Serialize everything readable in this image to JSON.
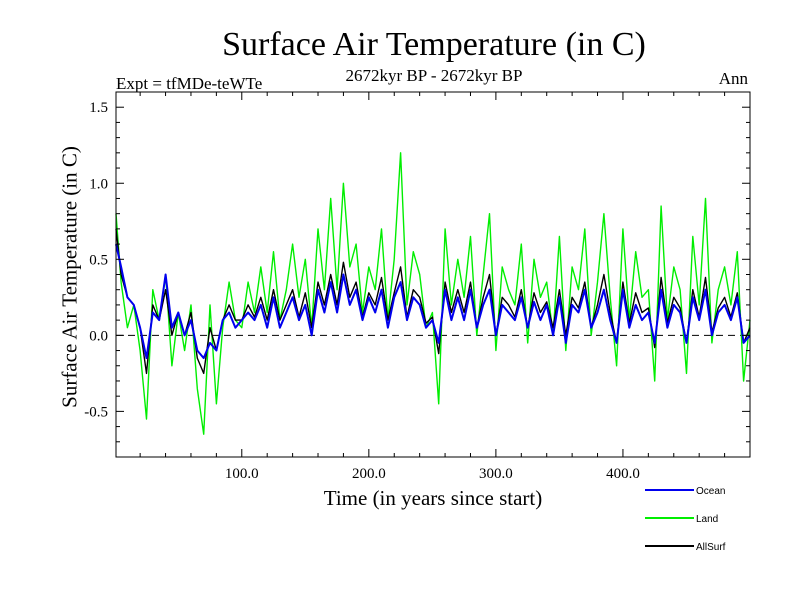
{
  "chart_data": {
    "type": "line",
    "title": "Surface Air Temperature (in C)",
    "subtitle": "2672kyr BP - 2672kyr BP",
    "experiment": "Expt = tfMDe-teWTe",
    "season": "Ann",
    "xlabel": "Time (in years since start)",
    "ylabel": "Surface Air Temperature (in C)",
    "xlim": [
      1,
      500
    ],
    "ylim": [
      -0.8,
      1.6
    ],
    "xticks": [
      100,
      200,
      300,
      400
    ],
    "xtick_labels": [
      "100.0",
      "200.0",
      "300.0",
      "400.0"
    ],
    "yticks": [
      -0.5,
      0.0,
      0.5,
      1.0,
      1.5
    ],
    "ytick_labels": [
      "-0.5",
      "0.0",
      "0.5",
      "1.0",
      "1.5"
    ],
    "zero_line": 0.0,
    "series": [
      {
        "name": "Land",
        "color": "#00ee00",
        "x": [
          1,
          5,
          10,
          15,
          20,
          25,
          30,
          35,
          40,
          45,
          50,
          55,
          60,
          65,
          70,
          75,
          80,
          85,
          90,
          95,
          100,
          105,
          110,
          115,
          120,
          125,
          130,
          135,
          140,
          145,
          150,
          155,
          160,
          165,
          170,
          175,
          180,
          185,
          190,
          195,
          200,
          205,
          210,
          215,
          220,
          225,
          230,
          235,
          240,
          245,
          250,
          255,
          260,
          265,
          270,
          275,
          280,
          285,
          290,
          295,
          300,
          305,
          310,
          315,
          320,
          325,
          330,
          335,
          340,
          345,
          350,
          355,
          360,
          365,
          370,
          375,
          380,
          385,
          390,
          395,
          400,
          405,
          410,
          415,
          420,
          425,
          430,
          435,
          440,
          445,
          450,
          455,
          460,
          465,
          470,
          475,
          480,
          485,
          490,
          495,
          500
        ],
        "values": [
          0.8,
          0.35,
          0.05,
          0.2,
          -0.1,
          -0.55,
          0.3,
          0.1,
          0.4,
          -0.2,
          0.15,
          -0.1,
          0.2,
          -0.35,
          -0.65,
          0.2,
          -0.45,
          0.05,
          0.35,
          0.1,
          0.05,
          0.35,
          0.15,
          0.45,
          0.15,
          0.55,
          0.1,
          0.3,
          0.6,
          0.25,
          0.5,
          0.05,
          0.7,
          0.3,
          0.9,
          0.3,
          1.0,
          0.45,
          0.6,
          0.15,
          0.45,
          0.3,
          0.7,
          0.1,
          0.5,
          1.2,
          0.2,
          0.55,
          0.4,
          0.05,
          0.15,
          -0.45,
          0.7,
          0.2,
          0.5,
          0.25,
          0.65,
          0.0,
          0.4,
          0.8,
          -0.1,
          0.45,
          0.3,
          0.2,
          0.6,
          -0.05,
          0.5,
          0.25,
          0.35,
          0.0,
          0.65,
          -0.1,
          0.45,
          0.3,
          0.7,
          0.0,
          0.35,
          0.8,
          0.25,
          -0.2,
          0.7,
          0.1,
          0.55,
          0.25,
          0.3,
          -0.3,
          0.85,
          0.1,
          0.45,
          0.3,
          -0.25,
          0.65,
          0.2,
          0.9,
          -0.05,
          0.3,
          0.45,
          0.2,
          0.55,
          -0.3,
          0.1
        ]
      },
      {
        "name": "AllSurf",
        "color": "#000000",
        "x": [
          1,
          5,
          10,
          15,
          20,
          25,
          30,
          35,
          40,
          45,
          50,
          55,
          60,
          65,
          70,
          75,
          80,
          85,
          90,
          95,
          100,
          105,
          110,
          115,
          120,
          125,
          130,
          135,
          140,
          145,
          150,
          155,
          160,
          165,
          170,
          175,
          180,
          185,
          190,
          195,
          200,
          205,
          210,
          215,
          220,
          225,
          230,
          235,
          240,
          245,
          250,
          255,
          260,
          265,
          270,
          275,
          280,
          285,
          290,
          295,
          300,
          305,
          310,
          315,
          320,
          325,
          330,
          335,
          340,
          345,
          350,
          355,
          360,
          365,
          370,
          375,
          380,
          385,
          390,
          395,
          400,
          405,
          410,
          415,
          420,
          425,
          430,
          435,
          440,
          445,
          450,
          455,
          460,
          465,
          470,
          475,
          480,
          485,
          490,
          495,
          500
        ],
        "values": [
          0.7,
          0.4,
          0.25,
          0.2,
          0.05,
          -0.25,
          0.2,
          0.1,
          0.3,
          0.0,
          0.15,
          0.0,
          0.15,
          -0.15,
          -0.25,
          0.05,
          -0.1,
          0.1,
          0.2,
          0.1,
          0.1,
          0.2,
          0.12,
          0.25,
          0.1,
          0.3,
          0.1,
          0.2,
          0.3,
          0.12,
          0.28,
          0.05,
          0.35,
          0.2,
          0.4,
          0.2,
          0.48,
          0.25,
          0.35,
          0.12,
          0.28,
          0.2,
          0.38,
          0.1,
          0.28,
          0.45,
          0.12,
          0.3,
          0.25,
          0.08,
          0.12,
          -0.12,
          0.35,
          0.15,
          0.3,
          0.15,
          0.35,
          0.05,
          0.25,
          0.4,
          0.0,
          0.25,
          0.2,
          0.12,
          0.3,
          0.05,
          0.28,
          0.15,
          0.22,
          0.05,
          0.3,
          0.0,
          0.25,
          0.18,
          0.35,
          0.05,
          0.2,
          0.4,
          0.15,
          -0.05,
          0.35,
          0.08,
          0.28,
          0.15,
          0.18,
          -0.08,
          0.38,
          0.08,
          0.25,
          0.18,
          -0.05,
          0.3,
          0.12,
          0.38,
          0.02,
          0.18,
          0.25,
          0.12,
          0.28,
          -0.05,
          0.05
        ]
      },
      {
        "name": "Ocean",
        "color": "#0000ee",
        "x": [
          1,
          5,
          10,
          15,
          20,
          25,
          30,
          35,
          40,
          45,
          50,
          55,
          60,
          65,
          70,
          75,
          80,
          85,
          90,
          95,
          100,
          105,
          110,
          115,
          120,
          125,
          130,
          135,
          140,
          145,
          150,
          155,
          160,
          165,
          170,
          175,
          180,
          185,
          190,
          195,
          200,
          205,
          210,
          215,
          220,
          225,
          230,
          235,
          240,
          245,
          250,
          255,
          260,
          265,
          270,
          275,
          280,
          285,
          290,
          295,
          300,
          305,
          310,
          315,
          320,
          325,
          330,
          335,
          340,
          345,
          350,
          355,
          360,
          365,
          370,
          375,
          380,
          385,
          390,
          395,
          400,
          405,
          410,
          415,
          420,
          425,
          430,
          435,
          440,
          445,
          450,
          455,
          460,
          465,
          470,
          475,
          480,
          485,
          490,
          495,
          500
        ],
        "values": [
          0.6,
          0.45,
          0.25,
          0.2,
          0.05,
          -0.15,
          0.15,
          0.1,
          0.4,
          0.05,
          0.15,
          0.0,
          0.1,
          -0.1,
          -0.15,
          -0.05,
          -0.1,
          0.1,
          0.15,
          0.05,
          0.1,
          0.15,
          0.1,
          0.2,
          0.05,
          0.25,
          0.05,
          0.15,
          0.25,
          0.1,
          0.2,
          0.0,
          0.3,
          0.15,
          0.35,
          0.15,
          0.4,
          0.2,
          0.3,
          0.1,
          0.25,
          0.15,
          0.3,
          0.05,
          0.25,
          0.35,
          0.1,
          0.25,
          0.2,
          0.05,
          0.1,
          -0.05,
          0.3,
          0.1,
          0.25,
          0.1,
          0.3,
          0.05,
          0.2,
          0.3,
          0.0,
          0.2,
          0.15,
          0.1,
          0.25,
          0.05,
          0.22,
          0.1,
          0.2,
          0.0,
          0.25,
          -0.05,
          0.2,
          0.15,
          0.3,
          0.05,
          0.15,
          0.3,
          0.1,
          -0.05,
          0.3,
          0.05,
          0.2,
          0.1,
          0.15,
          -0.05,
          0.3,
          0.05,
          0.2,
          0.15,
          -0.05,
          0.25,
          0.1,
          0.3,
          0.0,
          0.15,
          0.2,
          0.1,
          0.25,
          -0.05,
          0.0
        ]
      }
    ],
    "legend": [
      {
        "name": "Ocean",
        "color": "#0000ee"
      },
      {
        "name": "Land",
        "color": "#00ee00"
      },
      {
        "name": "AllSurf",
        "color": "#000000"
      }
    ],
    "legend_position": "bottom-right"
  }
}
